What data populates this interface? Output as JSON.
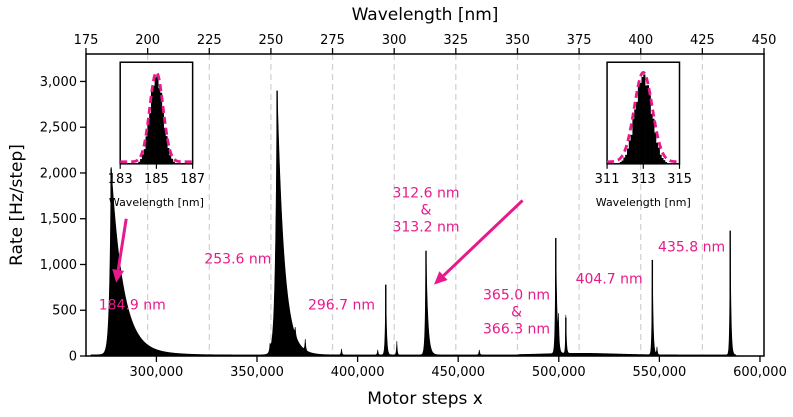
{
  "chart_data": {
    "type": "area",
    "xlabel": "Motor steps x",
    "ylabel": "Rate [Hz/step]",
    "top_xlabel": "Wavelength [nm]",
    "xlim": [
      265000,
      602000
    ],
    "ylim": [
      0,
      3300
    ],
    "top_xlim": [
      175,
      450
    ],
    "x_ticks": [
      300000,
      350000,
      400000,
      450000,
      500000,
      550000,
      600000
    ],
    "x_tick_labels": [
      "300,000",
      "350,000",
      "400,000",
      "450,000",
      "500,000",
      "550,000",
      "600,000"
    ],
    "y_ticks": [
      0,
      500,
      1000,
      1500,
      2000,
      2500,
      3000
    ],
    "y_tick_labels": [
      "0",
      "500",
      "1,000",
      "1,500",
      "2,000",
      "2,500",
      "3,000"
    ],
    "top_ticks": [
      175,
      200,
      225,
      250,
      275,
      300,
      325,
      350,
      375,
      400,
      425,
      450
    ],
    "top_tick_labels": [
      "175",
      "200",
      "225",
      "250",
      "275",
      "300",
      "325",
      "350",
      "375",
      "400",
      "425",
      "450"
    ],
    "wavelength_gridlines": [
      200,
      225,
      250,
      275,
      300,
      325,
      350,
      375,
      400,
      425
    ],
    "fill_color": "#000000",
    "annotation_color": "#e8198b",
    "grid_color": "#d0d0d0",
    "peaks": [
      {
        "x": 277500,
        "height": 2050,
        "left_width": 800,
        "right_width": 6000
      },
      {
        "x": 360000,
        "height": 2900,
        "left_width": 900,
        "right_width": 3500
      },
      {
        "x": 414000,
        "height": 780,
        "left_width": 300,
        "right_width": 400
      },
      {
        "x": 434000,
        "height": 1150,
        "left_width": 400,
        "right_width": 900
      },
      {
        "x": 498500,
        "height": 1290,
        "left_width": 300,
        "right_width": 600
      },
      {
        "x": 499800,
        "height": 320,
        "left_width": 200,
        "right_width": 300
      },
      {
        "x": 503500,
        "height": 420,
        "left_width": 200,
        "right_width": 300
      },
      {
        "x": 546500,
        "height": 1050,
        "left_width": 250,
        "right_width": 400
      },
      {
        "x": 585200,
        "height": 1370,
        "left_width": 250,
        "right_width": 400
      }
    ],
    "minor_peaks": [
      {
        "x": 356500,
        "height": 80
      },
      {
        "x": 369000,
        "height": 90
      },
      {
        "x": 374000,
        "height": 130
      },
      {
        "x": 392000,
        "height": 70
      },
      {
        "x": 410000,
        "height": 60
      },
      {
        "x": 419500,
        "height": 150
      },
      {
        "x": 460500,
        "height": 60
      },
      {
        "x": 548800,
        "height": 90
      }
    ],
    "annotations": [
      {
        "id": "peak-184",
        "lines": [
          "184.9 nm"
        ],
        "x": 288000,
        "y": 510,
        "anchor": "middle"
      },
      {
        "id": "peak-253",
        "lines": [
          "253.6 nm"
        ],
        "x": 340500,
        "y": 1010,
        "anchor": "middle"
      },
      {
        "id": "peak-296",
        "lines": [
          "296.7 nm"
        ],
        "x": 392000,
        "y": 510,
        "anchor": "middle"
      },
      {
        "id": "peak-312",
        "lines": [
          "312.6 nm",
          "&",
          "313.2 nm"
        ],
        "x": 434000,
        "y": 1730,
        "anchor": "middle"
      },
      {
        "id": "peak-365",
        "lines": [
          "365.0 nm",
          "&",
          "366.3 nm"
        ],
        "x": 479000,
        "y": 620,
        "anchor": "middle"
      },
      {
        "id": "peak-404",
        "lines": [
          "404.7 nm"
        ],
        "x": 525000,
        "y": 790,
        "anchor": "middle"
      },
      {
        "id": "peak-435",
        "lines": [
          "435.8 nm"
        ],
        "x": 566000,
        "y": 1140,
        "anchor": "middle"
      }
    ],
    "arrows": [
      {
        "id": "arrow-left",
        "from": [
          285000,
          1500
        ],
        "to": [
          280000,
          800
        ]
      },
      {
        "id": "arrow-right",
        "from": [
          482000,
          1700
        ],
        "to": [
          438000,
          780
        ]
      }
    ],
    "insets": [
      {
        "id": "inset-left",
        "xlabel": "Wavelength [nm]",
        "xlim": [
          183,
          187
        ],
        "x_ticks": [
          183,
          185,
          187
        ],
        "x_tick_labels": [
          "183",
          "185",
          "187"
        ],
        "hist_center": 185.0,
        "hist_sigma": 0.35,
        "fit_sigma": 0.37,
        "box_x": [
          282000,
          318000
        ],
        "box_y": [
          2100,
          3210
        ]
      },
      {
        "id": "inset-right",
        "xlabel": "Wavelength [nm]",
        "xlim": [
          311,
          315
        ],
        "x_ticks": [
          311,
          313,
          315
        ],
        "x_tick_labels": [
          "311",
          "313",
          "315"
        ],
        "hist_center": 313.0,
        "hist_sigma": 0.45,
        "fit_sigma": 0.5,
        "box_x": [
          524000,
          560000
        ],
        "box_y": [
          2100,
          3210
        ]
      }
    ]
  }
}
